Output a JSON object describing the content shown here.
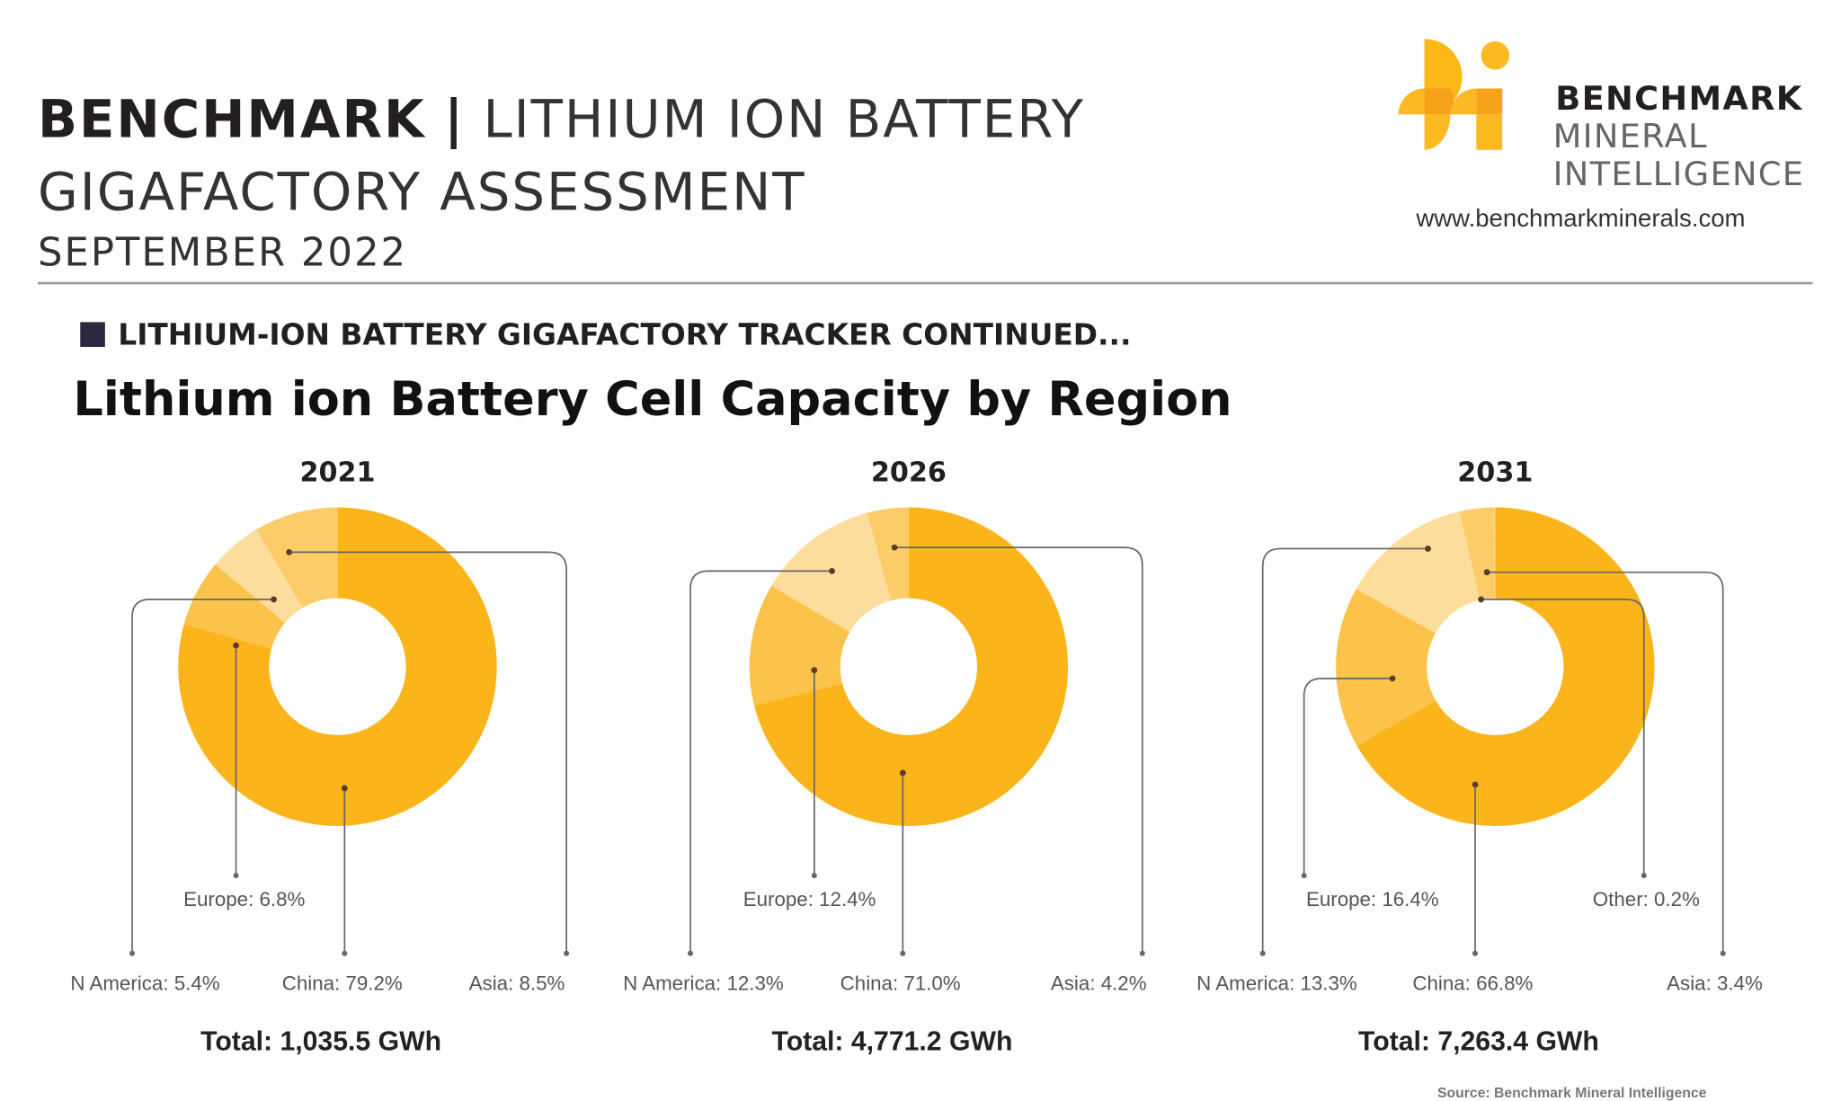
{
  "header": {
    "brand": "BENCHMARK",
    "separator": "|",
    "title_line1": "LITHIUM ION BATTERY",
    "title_line2": "GIGAFACTORY ASSESSMENT",
    "date": "SEPTEMBER 2022"
  },
  "logo": {
    "line1": "BENCHMARK",
    "line2": "MINERAL",
    "line3": "INTELLIGENCE",
    "url": "www.benchmarkminerals.com"
  },
  "section": {
    "heading": "LITHIUM-ION BATTERY GIGAFACTORY TRACKER CONTINUED...",
    "title": "Lithium ion Battery Cell Capacity by Region"
  },
  "colors": {
    "China": "#FBB41A",
    "Europe": "#FCC34B",
    "N America": "#FDDD9C",
    "Asia": "#FCCC68",
    "Other": "#FDD47E",
    "leader": "#666666"
  },
  "chart_data": [
    {
      "type": "pie",
      "donut": true,
      "title": "2021",
      "categories": [
        "China",
        "Europe",
        "N America",
        "Asia"
      ],
      "values": [
        79.2,
        6.8,
        5.4,
        8.5
      ],
      "labels": [
        "China: 79.2%",
        "Europe: 6.8%",
        "N America: 5.4%",
        "Asia: 8.5%"
      ],
      "total": "Total: 1,035.5 GWh"
    },
    {
      "type": "pie",
      "donut": true,
      "title": "2026",
      "categories": [
        "China",
        "Europe",
        "N America",
        "Asia"
      ],
      "values": [
        71.0,
        12.4,
        12.3,
        4.2
      ],
      "labels": [
        "China: 71.0%",
        "Europe: 12.4%",
        "N America: 12.3%",
        "Asia: 4.2%"
      ],
      "total": "Total: 4,771.2 GWh"
    },
    {
      "type": "pie",
      "donut": true,
      "title": "2031",
      "categories": [
        "China",
        "Europe",
        "N America",
        "Asia",
        "Other"
      ],
      "values": [
        66.8,
        16.4,
        13.3,
        3.4,
        0.2
      ],
      "labels": [
        "China: 66.8%",
        "Europe: 16.4%",
        "N America: 13.3%",
        "Asia: 3.4%",
        "Other: 0.2%"
      ],
      "total": "Total: 7,263.4 GWh"
    }
  ],
  "source": "Source: Benchmark Mineral Intelligence"
}
